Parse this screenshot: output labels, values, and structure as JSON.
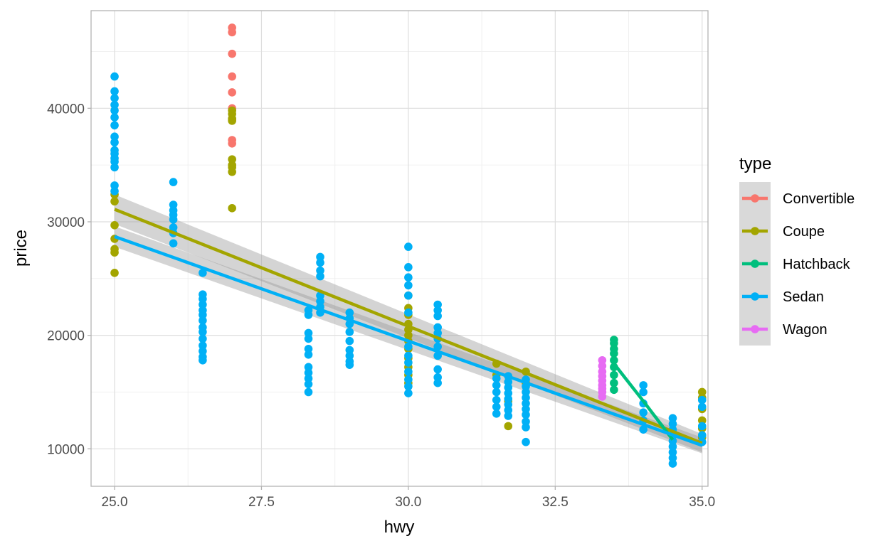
{
  "chart_data": {
    "type": "scatter",
    "xlabel": "hwy",
    "ylabel": "price",
    "xlim": [
      24.6,
      35.1
    ],
    "ylim": [
      6700,
      48600
    ],
    "x_ticks": [
      25.0,
      27.5,
      30.0,
      32.5,
      35.0
    ],
    "x_tick_labels": [
      "25.0",
      "27.5",
      "30.0",
      "32.5",
      "35.0"
    ],
    "y_ticks": [
      10000,
      20000,
      30000,
      40000
    ],
    "y_tick_labels": [
      "10000",
      "20000",
      "30000",
      "40000"
    ],
    "grid": true,
    "legend": {
      "title": "type",
      "position": "right"
    },
    "series": [
      {
        "name": "Convertible",
        "color": "#F8766D",
        "points": [
          [
            27,
            47100
          ],
          [
            27,
            46700
          ],
          [
            27,
            44800
          ],
          [
            27,
            42800
          ],
          [
            27,
            41400
          ],
          [
            27,
            40000
          ],
          [
            27,
            39000
          ],
          [
            27,
            37200
          ],
          [
            27,
            36900
          ]
        ],
        "line": [
          [
            27,
            39800
          ],
          [
            27,
            39800
          ]
        ]
      },
      {
        "name": "Coupe",
        "color": "#A3A500",
        "points": [
          [
            25,
            32400
          ],
          [
            25,
            31800
          ],
          [
            25,
            29700
          ],
          [
            25,
            28500
          ],
          [
            25,
            27600
          ],
          [
            25,
            27300
          ],
          [
            25,
            25500
          ],
          [
            27,
            39800
          ],
          [
            27,
            39500
          ],
          [
            27,
            39100
          ],
          [
            27,
            38900
          ],
          [
            27,
            35500
          ],
          [
            27,
            35000
          ],
          [
            27,
            34800
          ],
          [
            27,
            34400
          ],
          [
            27,
            31200
          ],
          [
            30,
            23500
          ],
          [
            30,
            22400
          ],
          [
            30,
            21800
          ],
          [
            30,
            21000
          ],
          [
            30,
            20500
          ],
          [
            30,
            20000
          ],
          [
            30,
            19500
          ],
          [
            30,
            18800
          ],
          [
            30,
            18000
          ],
          [
            30,
            17200
          ],
          [
            30,
            16500
          ],
          [
            30,
            15800
          ],
          [
            31.5,
            17500
          ],
          [
            31.5,
            16500
          ],
          [
            31.7,
            14200
          ],
          [
            31.7,
            12000
          ],
          [
            32,
            16800
          ],
          [
            32,
            15800
          ],
          [
            35,
            15000
          ],
          [
            35,
            14500
          ],
          [
            35,
            13500
          ],
          [
            35,
            12500
          ],
          [
            35,
            11800
          ],
          [
            35,
            11000
          ]
        ],
        "line": [
          [
            25,
            31100
          ],
          [
            35,
            10500
          ]
        ],
        "band": [
          [
            25,
            29800,
            32400
          ],
          [
            35,
            9700,
            11300
          ]
        ]
      },
      {
        "name": "Hatchback",
        "color": "#00BF7D",
        "points": [
          [
            33.5,
            19600
          ],
          [
            33.5,
            19300
          ],
          [
            33.5,
            18800
          ],
          [
            33.5,
            18400
          ],
          [
            33.5,
            17800
          ],
          [
            33.5,
            17200
          ],
          [
            33.5,
            16500
          ],
          [
            33.5,
            15800
          ],
          [
            33.5,
            15200
          ]
        ],
        "line": [
          [
            33.5,
            17500
          ],
          [
            34,
            14200
          ],
          [
            34.5,
            10800
          ]
        ]
      },
      {
        "name": "Sedan",
        "color": "#00B0F6",
        "points": [
          [
            25,
            42800
          ],
          [
            25,
            41500
          ],
          [
            25,
            40900
          ],
          [
            25,
            40300
          ],
          [
            25,
            39800
          ],
          [
            25,
            39200
          ],
          [
            25,
            38500
          ],
          [
            25,
            37500
          ],
          [
            25,
            37000
          ],
          [
            25,
            36300
          ],
          [
            25,
            36000
          ],
          [
            25,
            35600
          ],
          [
            25,
            35300
          ],
          [
            25,
            34800
          ],
          [
            25,
            33200
          ],
          [
            25,
            32700
          ],
          [
            26,
            33500
          ],
          [
            26,
            31500
          ],
          [
            26,
            31000
          ],
          [
            26,
            30600
          ],
          [
            26,
            30200
          ],
          [
            26,
            29500
          ],
          [
            26,
            29000
          ],
          [
            26,
            28100
          ],
          [
            26.5,
            25500
          ],
          [
            26.5,
            23600
          ],
          [
            26.5,
            23200
          ],
          [
            26.5,
            22700
          ],
          [
            26.5,
            22200
          ],
          [
            26.5,
            21800
          ],
          [
            26.5,
            21300
          ],
          [
            26.5,
            20700
          ],
          [
            26.5,
            20300
          ],
          [
            26.5,
            19700
          ],
          [
            26.5,
            19100
          ],
          [
            26.5,
            18600
          ],
          [
            26.5,
            18100
          ],
          [
            26.5,
            17800
          ],
          [
            28.3,
            22200
          ],
          [
            28.3,
            21800
          ],
          [
            28.3,
            20200
          ],
          [
            28.3,
            19700
          ],
          [
            28.3,
            18800
          ],
          [
            28.3,
            18300
          ],
          [
            28.3,
            17200
          ],
          [
            28.3,
            16700
          ],
          [
            28.3,
            16200
          ],
          [
            28.3,
            15700
          ],
          [
            28.3,
            15000
          ],
          [
            28.5,
            26900
          ],
          [
            28.5,
            26400
          ],
          [
            28.5,
            25700
          ],
          [
            28.5,
            25200
          ],
          [
            28.5,
            23500
          ],
          [
            28.5,
            23000
          ],
          [
            28.5,
            22500
          ],
          [
            28.5,
            22000
          ],
          [
            29,
            22000
          ],
          [
            29,
            21500
          ],
          [
            29,
            21000
          ],
          [
            29,
            20300
          ],
          [
            29,
            19500
          ],
          [
            29,
            18700
          ],
          [
            29,
            18200
          ],
          [
            29,
            17700
          ],
          [
            29,
            17400
          ],
          [
            30,
            27800
          ],
          [
            30,
            26000
          ],
          [
            30,
            25100
          ],
          [
            30,
            24400
          ],
          [
            30,
            23500
          ],
          [
            30,
            22000
          ],
          [
            30,
            19000
          ],
          [
            30,
            18200
          ],
          [
            30,
            17600
          ],
          [
            30,
            16800
          ],
          [
            30,
            16100
          ],
          [
            30,
            15500
          ],
          [
            30,
            14900
          ],
          [
            30.5,
            22700
          ],
          [
            30.5,
            22200
          ],
          [
            30.5,
            21700
          ],
          [
            30.5,
            20700
          ],
          [
            30.5,
            20200
          ],
          [
            30.5,
            19700
          ],
          [
            30.5,
            19000
          ],
          [
            30.5,
            18200
          ],
          [
            30.5,
            17000
          ],
          [
            30.5,
            16300
          ],
          [
            30.5,
            15800
          ],
          [
            31.5,
            16200
          ],
          [
            31.5,
            15600
          ],
          [
            31.5,
            15000
          ],
          [
            31.5,
            14300
          ],
          [
            31.5,
            13700
          ],
          [
            31.5,
            13100
          ],
          [
            31.7,
            16400
          ],
          [
            31.7,
            15900
          ],
          [
            31.7,
            15400
          ],
          [
            31.7,
            14900
          ],
          [
            31.7,
            14400
          ],
          [
            31.7,
            13900
          ],
          [
            31.7,
            13400
          ],
          [
            31.7,
            12900
          ],
          [
            32,
            16100
          ],
          [
            32,
            15500
          ],
          [
            32,
            15000
          ],
          [
            32,
            14500
          ],
          [
            32,
            14000
          ],
          [
            32,
            13500
          ],
          [
            32,
            13000
          ],
          [
            32,
            12400
          ],
          [
            32,
            11900
          ],
          [
            32,
            10600
          ],
          [
            34,
            15600
          ],
          [
            34,
            15000
          ],
          [
            34,
            14000
          ],
          [
            34,
            13200
          ],
          [
            34,
            12500
          ],
          [
            34,
            11700
          ],
          [
            34.5,
            12700
          ],
          [
            34.5,
            12200
          ],
          [
            34.5,
            11700
          ],
          [
            34.5,
            11200
          ],
          [
            34.5,
            10700
          ],
          [
            34.5,
            10200
          ],
          [
            34.5,
            9700
          ],
          [
            34.5,
            9200
          ],
          [
            34.5,
            8700
          ],
          [
            35,
            14300
          ],
          [
            35,
            13700
          ],
          [
            35,
            12000
          ],
          [
            35,
            11200
          ],
          [
            35,
            10600
          ]
        ],
        "line": [
          [
            25,
            28700
          ],
          [
            35,
            10300
          ]
        ],
        "band": [
          [
            25,
            27800,
            29600
          ],
          [
            35,
            9600,
            11000
          ]
        ]
      },
      {
        "name": "Wagon",
        "color": "#E76BF3",
        "points": [
          [
            33.3,
            17800
          ],
          [
            33.3,
            17300
          ],
          [
            33.3,
            16800
          ],
          [
            33.3,
            16400
          ],
          [
            33.3,
            16000
          ],
          [
            33.3,
            15600
          ],
          [
            33.3,
            15300
          ],
          [
            33.3,
            15000
          ],
          [
            33.3,
            14600
          ]
        ],
        "line": [
          [
            33.3,
            16000
          ],
          [
            33.3,
            16000
          ]
        ]
      }
    ]
  }
}
